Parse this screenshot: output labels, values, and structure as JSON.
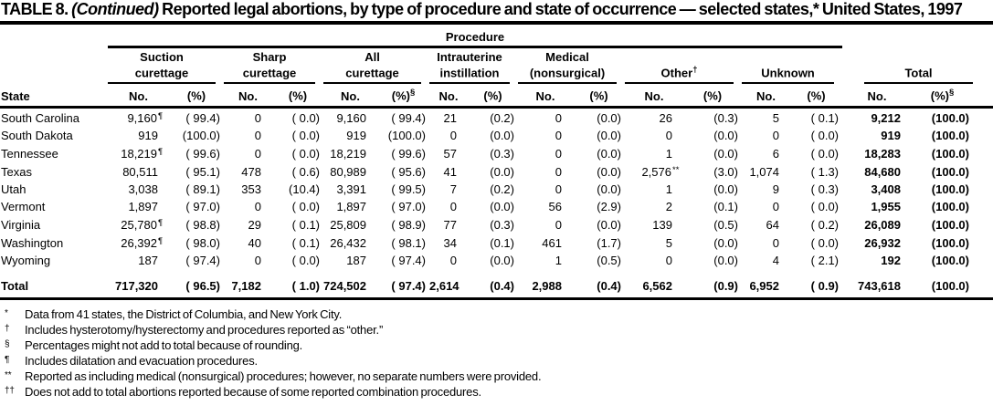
{
  "title": {
    "prefix": "TABLE 8. ",
    "continued": "(Continued)",
    "rest": " Reported legal abortions, by type of procedure and state of occurrence — selected states,* United States, 1997"
  },
  "table": {
    "procedure_label": "Procedure",
    "state_header": "State",
    "groups": [
      {
        "label": "Suction\ncurettage",
        "sup": "",
        "no": "No.",
        "pct": "(%)",
        "pct_sup": ""
      },
      {
        "label": "Sharp\ncurettage",
        "sup": "",
        "no": "No.",
        "pct": "(%)",
        "pct_sup": ""
      },
      {
        "label": "All\ncurettage",
        "sup": "",
        "no": "No.",
        "pct": "(%)",
        "pct_sup": "§"
      },
      {
        "label": "Intrauterine\ninstillation",
        "sup": "",
        "no": "No.",
        "pct": "(%)",
        "pct_sup": ""
      },
      {
        "label": "Medical\n(nonsurgical)",
        "sup": "",
        "no": "No.",
        "pct": "(%)",
        "pct_sup": ""
      },
      {
        "label": "Other",
        "sup": "†",
        "no": "No.",
        "pct": "(%)",
        "pct_sup": ""
      },
      {
        "label": "Unknown",
        "sup": "",
        "no": "No.",
        "pct": "(%)",
        "pct_sup": ""
      },
      {
        "label": "Total",
        "sup": "",
        "no": "No.",
        "pct": "(%)",
        "pct_sup": "§"
      }
    ],
    "rows": [
      {
        "state": "South Carolina",
        "bold": false,
        "cells": [
          [
            "9,160",
            "¶",
            "( 99.4)"
          ],
          [
            "0",
            "",
            "( 0.0)"
          ],
          [
            "9,160",
            "",
            "( 99.4)"
          ],
          [
            "21",
            "",
            "(0.2)"
          ],
          [
            "0",
            "",
            "(0.0)"
          ],
          [
            "26",
            "",
            "(0.3)"
          ],
          [
            "5",
            "",
            "( 0.1)"
          ],
          [
            "9,212",
            "",
            "(100.0)"
          ]
        ]
      },
      {
        "state": "South Dakota",
        "bold": false,
        "cells": [
          [
            "919",
            "",
            "(100.0)"
          ],
          [
            "0",
            "",
            "( 0.0)"
          ],
          [
            "919",
            "",
            "(100.0)"
          ],
          [
            "0",
            "",
            "(0.0)"
          ],
          [
            "0",
            "",
            "(0.0)"
          ],
          [
            "0",
            "",
            "(0.0)"
          ],
          [
            "0",
            "",
            "( 0.0)"
          ],
          [
            "919",
            "",
            "(100.0)"
          ]
        ]
      },
      {
        "state": "Tennessee",
        "bold": false,
        "cells": [
          [
            "18,219",
            "¶",
            "( 99.6)"
          ],
          [
            "0",
            "",
            "( 0.0)"
          ],
          [
            "18,219",
            "",
            "( 99.6)"
          ],
          [
            "57",
            "",
            "(0.3)"
          ],
          [
            "0",
            "",
            "(0.0)"
          ],
          [
            "1",
            "",
            "(0.0)"
          ],
          [
            "6",
            "",
            "( 0.0)"
          ],
          [
            "18,283",
            "",
            "(100.0)"
          ]
        ]
      },
      {
        "state": "Texas",
        "bold": false,
        "cells": [
          [
            "80,511",
            "",
            "( 95.1)"
          ],
          [
            "478",
            "",
            "( 0.6)"
          ],
          [
            "80,989",
            "",
            "( 95.6)"
          ],
          [
            "41",
            "",
            "(0.0)"
          ],
          [
            "0",
            "",
            "(0.0)"
          ],
          [
            "2,576",
            "**",
            "(3.0)"
          ],
          [
            "1,074",
            "",
            "( 1.3)"
          ],
          [
            "84,680",
            "",
            "(100.0)"
          ]
        ]
      },
      {
        "state": "Utah",
        "bold": false,
        "cells": [
          [
            "3,038",
            "",
            "( 89.1)"
          ],
          [
            "353",
            "",
            "(10.4)"
          ],
          [
            "3,391",
            "",
            "( 99.5)"
          ],
          [
            "7",
            "",
            "(0.2)"
          ],
          [
            "0",
            "",
            "(0.0)"
          ],
          [
            "1",
            "",
            "(0.0)"
          ],
          [
            "9",
            "",
            "( 0.3)"
          ],
          [
            "3,408",
            "",
            "(100.0)"
          ]
        ]
      },
      {
        "state": "Vermont",
        "bold": false,
        "cells": [
          [
            "1,897",
            "",
            "( 97.0)"
          ],
          [
            "0",
            "",
            "( 0.0)"
          ],
          [
            "1,897",
            "",
            "( 97.0)"
          ],
          [
            "0",
            "",
            "(0.0)"
          ],
          [
            "56",
            "",
            "(2.9)"
          ],
          [
            "2",
            "",
            "(0.1)"
          ],
          [
            "0",
            "",
            "( 0.0)"
          ],
          [
            "1,955",
            "",
            "(100.0)"
          ]
        ]
      },
      {
        "state": "Virginia",
        "bold": false,
        "cells": [
          [
            "25,780",
            "¶",
            "( 98.8)"
          ],
          [
            "29",
            "",
            "( 0.1)"
          ],
          [
            "25,809",
            "",
            "( 98.9)"
          ],
          [
            "77",
            "",
            "(0.3)"
          ],
          [
            "0",
            "",
            "(0.0)"
          ],
          [
            "139",
            "",
            "(0.5)"
          ],
          [
            "64",
            "",
            "( 0.2)"
          ],
          [
            "26,089",
            "",
            "(100.0)"
          ]
        ]
      },
      {
        "state": "Washington",
        "bold": false,
        "cells": [
          [
            "26,392",
            "¶",
            "( 98.0)"
          ],
          [
            "40",
            "",
            "( 0.1)"
          ],
          [
            "26,432",
            "",
            "( 98.1)"
          ],
          [
            "34",
            "",
            "(0.1)"
          ],
          [
            "461",
            "",
            "(1.7)"
          ],
          [
            "5",
            "",
            "(0.0)"
          ],
          [
            "0",
            "",
            "( 0.0)"
          ],
          [
            "26,932",
            "",
            "(100.0)"
          ]
        ]
      },
      {
        "state": "Wyoming",
        "bold": false,
        "cells": [
          [
            "187",
            "",
            "( 97.4)"
          ],
          [
            "0",
            "",
            "( 0.0)"
          ],
          [
            "187",
            "",
            "( 97.4)"
          ],
          [
            "0",
            "",
            "(0.0)"
          ],
          [
            "1",
            "",
            "(0.5)"
          ],
          [
            "0",
            "",
            "(0.0)"
          ],
          [
            "4",
            "",
            "( 2.1)"
          ],
          [
            "192",
            "",
            "(100.0)"
          ]
        ]
      },
      {
        "state": "Total",
        "bold": true,
        "cells": [
          [
            "717,320",
            "",
            "( 96.5)"
          ],
          [
            "7,182",
            "",
            "( 1.0)"
          ],
          [
            "724,502",
            "",
            "( 97.4)"
          ],
          [
            "2,614",
            "",
            "(0.4)"
          ],
          [
            "2,988",
            "",
            "(0.4)"
          ],
          [
            "6,562",
            "",
            "(0.9)"
          ],
          [
            "6,952",
            "",
            "( 0.9)"
          ],
          [
            "743,618",
            "",
            "(100.0)"
          ]
        ]
      }
    ]
  },
  "footnotes": [
    {
      "sym": "*",
      "text": "Data from 41 states, the District of Columbia, and New York City."
    },
    {
      "sym": "†",
      "text": "Includes hysterotomy/hysterectomy and procedures reported as “other.”"
    },
    {
      "sym": "§",
      "text": "Percentages might not add to total because of rounding."
    },
    {
      "sym": "¶",
      "text": "Includes dilatation and evacuation procedures."
    },
    {
      "sym": "**",
      "text": "Reported as including medical (nonsurgical) procedures; however, no separate numbers were provided."
    },
    {
      "sym": "††",
      "text": "Does not add to total abortions reported because of some reported combination procedures."
    }
  ]
}
